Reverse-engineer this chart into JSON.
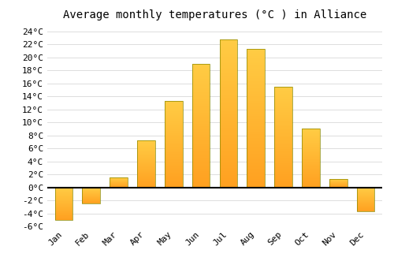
{
  "title": "Average monthly temperatures (°C ) in Alliance",
  "months": [
    "Jan",
    "Feb",
    "Mar",
    "Apr",
    "May",
    "Jun",
    "Jul",
    "Aug",
    "Sep",
    "Oct",
    "Nov",
    "Dec"
  ],
  "temperatures": [
    -5.0,
    -2.5,
    1.5,
    7.2,
    13.3,
    19.0,
    22.8,
    21.3,
    15.5,
    9.0,
    1.3,
    -3.7
  ],
  "bar_color_top": "#FFCC44",
  "bar_color_bottom": "#FFA020",
  "bar_edge_color": "#888800",
  "ylim_min": -6,
  "ylim_max": 25,
  "yticks": [
    -6,
    -4,
    -2,
    0,
    2,
    4,
    6,
    8,
    10,
    12,
    14,
    16,
    18,
    20,
    22,
    24
  ],
  "grid_color": "#dddddd",
  "background_color": "#ffffff",
  "plot_bg_color": "#ffffff",
  "zero_line_color": "#000000",
  "title_fontsize": 10,
  "tick_fontsize": 8,
  "bar_width": 0.65
}
